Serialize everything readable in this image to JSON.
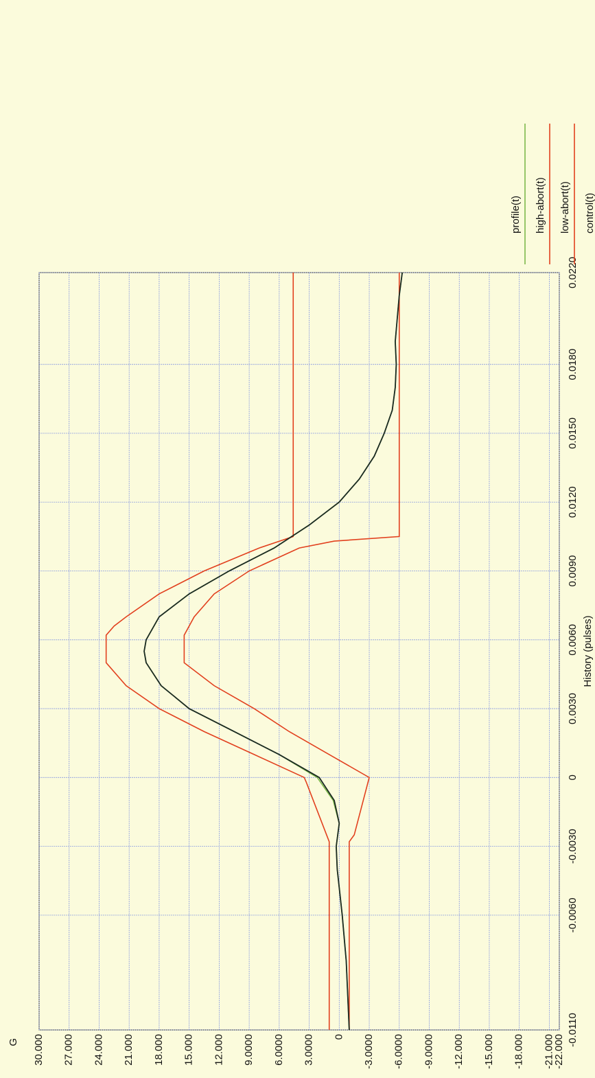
{
  "chart_data": {
    "type": "line",
    "y_label": "G",
    "x_label": "History (pulses)",
    "xlim": [
      -0.011,
      0.022
    ],
    "xticks": [
      {
        "value": -0.011,
        "label": "-0.0110"
      },
      {
        "value": -0.006,
        "label": "-0.0060"
      },
      {
        "value": -0.003,
        "label": "-0.0030"
      },
      0,
      {
        "value": 0.003,
        "label": "0.0030"
      },
      {
        "value": 0.006,
        "label": "0.0060"
      },
      {
        "value": 0.009,
        "label": "0.0090"
      },
      {
        "value": 0.012,
        "label": "0.0120"
      },
      {
        "value": 0.015,
        "label": "0.0150"
      },
      {
        "value": 0.018,
        "label": "0.0180"
      },
      {
        "value": 0.022,
        "label": "0.0220"
      }
    ],
    "ylim": [
      30,
      -22
    ],
    "yticks": [
      {
        "value": 30,
        "label": "30.000"
      },
      {
        "value": 27,
        "label": "27.000"
      },
      {
        "value": 24,
        "label": "24.000"
      },
      {
        "value": 21,
        "label": "21.000"
      },
      {
        "value": 18,
        "label": "18.000"
      },
      {
        "value": 15,
        "label": "15.000"
      },
      {
        "value": 12,
        "label": "12.000"
      },
      {
        "value": 9,
        "label": "9.0000"
      },
      {
        "value": 6,
        "label": "6.0000"
      },
      {
        "value": 3,
        "label": "3.0000"
      },
      0,
      {
        "value": -3,
        "label": "-3.0000"
      },
      {
        "value": -6,
        "label": "-6.0000"
      },
      {
        "value": -9,
        "label": "-9.0000"
      },
      {
        "value": -12,
        "label": "-12.000"
      },
      {
        "value": -15,
        "label": "-15.000"
      },
      {
        "value": -18,
        "label": "-18.000"
      },
      {
        "value": -21,
        "label": "-21.000"
      },
      {
        "value": -22,
        "label": "-22.000"
      }
    ],
    "grid": true,
    "series": [
      {
        "name": "profile(t)",
        "color": "#7cb84a",
        "x": [
          -0.011,
          -0.008,
          -0.006,
          -0.004,
          -0.003,
          -0.002,
          -0.001,
          0,
          0.001,
          0.002,
          0.003,
          0.004,
          0.005,
          0.0055,
          0.006,
          0.007,
          0.008,
          0.009,
          0.01,
          0.011,
          0.012,
          0.013,
          0.014,
          0.015,
          0.016,
          0.017,
          0.018,
          0.019,
          0.02,
          0.021,
          0.022
        ],
        "values": [
          -1,
          -0.7,
          -0.3,
          0.2,
          0.3,
          0,
          0.6,
          2.2,
          6,
          10.5,
          15,
          17.8,
          19.3,
          19.5,
          19.3,
          18,
          15,
          11,
          6.5,
          3,
          0,
          -2,
          -3.5,
          -4.5,
          -5.3,
          -5.6,
          -5.7,
          -5.6,
          -5.8,
          -6,
          -6.3
        ]
      },
      {
        "name": "high-abort(t)",
        "color": "#e2401e",
        "x": [
          -0.011,
          -0.0028,
          -0.0002,
          0,
          0.001,
          0.002,
          0.003,
          0.004,
          0.005,
          0.0062,
          0.0066,
          0.007,
          0.008,
          0.009,
          0.01,
          0.0105,
          0.022
        ],
        "values": [
          1,
          1,
          3.3,
          3.5,
          8.5,
          13.5,
          18,
          21.3,
          23.3,
          23.3,
          22.5,
          21.3,
          18,
          13.5,
          8,
          4.6,
          4.6
        ]
      },
      {
        "name": "low-abort(t)",
        "color": "#e2401e",
        "x": [
          -0.011,
          -0.0028,
          -0.0025,
          0,
          0.001,
          0.002,
          0.003,
          0.004,
          0.005,
          0.0062,
          0.007,
          0.008,
          0.009,
          0.01,
          0.0103,
          0.0105,
          0.022
        ],
        "values": [
          -1,
          -1,
          -1.5,
          -3,
          1,
          5,
          8.5,
          12.5,
          15.5,
          15.5,
          14.5,
          12.5,
          9,
          4,
          0.5,
          -6,
          -6
        ]
      },
      {
        "name": "control(t)",
        "color": "#1b2a22",
        "x": [
          -0.011,
          -0.008,
          -0.006,
          -0.004,
          -0.003,
          -0.002,
          -0.001,
          0,
          0.001,
          0.002,
          0.003,
          0.004,
          0.005,
          0.0055,
          0.006,
          0.007,
          0.008,
          0.009,
          0.01,
          0.011,
          0.012,
          0.013,
          0.014,
          0.015,
          0.016,
          0.017,
          0.018,
          0.019,
          0.02,
          0.021,
          0.022
        ],
        "values": [
          -1,
          -0.7,
          -0.3,
          0.2,
          0.3,
          0,
          0.5,
          2,
          6,
          10.5,
          15,
          17.8,
          19.3,
          19.5,
          19.3,
          18,
          15,
          11,
          6.5,
          3,
          0,
          -2,
          -3.5,
          -4.5,
          -5.3,
          -5.6,
          -5.7,
          -5.6,
          -5.8,
          -6,
          -6.3
        ]
      }
    ]
  }
}
